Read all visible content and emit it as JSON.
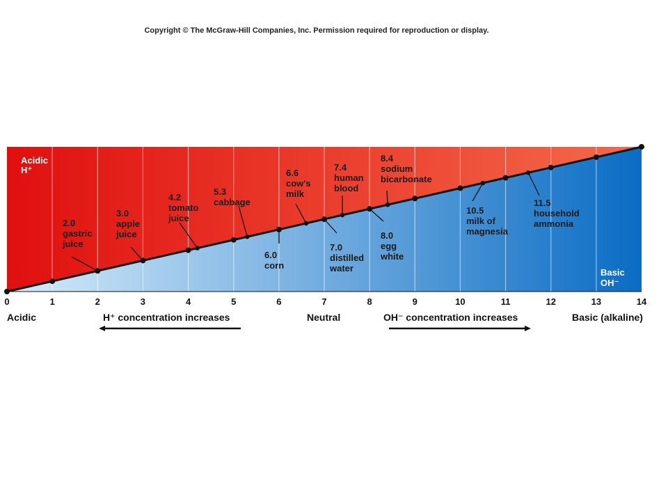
{
  "copyright": "Copyright © The McGraw-Hill Companies, Inc. Permission required for reproduction or display.",
  "scale": {
    "min": 0,
    "max": 14,
    "ticks": [
      0,
      1,
      2,
      3,
      4,
      5,
      6,
      7,
      8,
      9,
      10,
      11,
      12,
      13,
      14
    ]
  },
  "corner_labels": {
    "acidic": [
      "Acidic",
      "H⁺"
    ],
    "basic": [
      "Basic",
      "OH⁻"
    ]
  },
  "substances": [
    {
      "ph": 2.0,
      "lines": [
        "2.0",
        "gastric",
        "juice"
      ]
    },
    {
      "ph": 3.0,
      "lines": [
        "3.0",
        "apple",
        "juice"
      ]
    },
    {
      "ph": 4.2,
      "lines": [
        "4.2",
        "tomato",
        "juice"
      ]
    },
    {
      "ph": 5.3,
      "lines": [
        "5.3",
        "cabbage"
      ]
    },
    {
      "ph": 6.0,
      "lines": [
        "6.0",
        "corn"
      ]
    },
    {
      "ph": 6.6,
      "lines": [
        "6.6",
        "cow's",
        "milk"
      ]
    },
    {
      "ph": 7.0,
      "lines": [
        "7.0",
        "distilled",
        "water"
      ]
    },
    {
      "ph": 7.4,
      "lines": [
        "7.4",
        "human",
        "blood"
      ]
    },
    {
      "ph": 8.0,
      "lines": [
        "8.0",
        "egg",
        "white"
      ]
    },
    {
      "ph": 8.4,
      "lines": [
        "8.4",
        "sodium",
        "bicarbonate"
      ]
    },
    {
      "ph": 10.5,
      "lines": [
        "10.5",
        "milk of",
        "magnesia"
      ]
    },
    {
      "ph": 11.5,
      "lines": [
        "11.5",
        "household",
        "ammonia"
      ]
    }
  ],
  "axis_words": {
    "acidic": "Acidic",
    "h_increase": "H⁺ concentration increases",
    "neutral": "Neutral",
    "oh_increase": "OH⁻ concentration increases",
    "basic": "Basic (alkaline)"
  },
  "colors": {
    "acid_left": "#e01010",
    "acid_right": "#f46a4a",
    "base_left": "#d8ecfa",
    "base_right": "#0a6cc4",
    "line": "#111111"
  }
}
